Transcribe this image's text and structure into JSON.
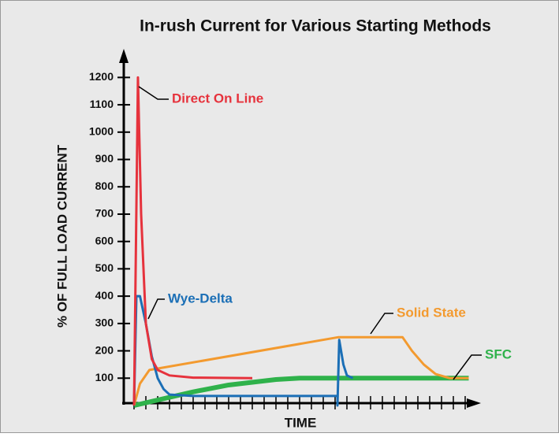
{
  "chart_data": {
    "type": "line",
    "title": "In-rush Current for Various Starting Methods",
    "ylabel": "% OF FULL LOAD CURRENT",
    "xlabel": "TIME",
    "xlim": [
      -1,
      29
    ],
    "xticks": [
      0,
      1,
      2,
      3,
      4,
      5,
      6,
      7,
      8,
      9,
      10,
      11,
      12,
      13,
      14,
      15,
      16,
      17,
      18,
      19,
      20,
      21,
      22,
      23,
      24,
      25,
      26,
      27,
      28
    ],
    "ylim": [
      0,
      1250
    ],
    "yticks": [
      100,
      200,
      300,
      400,
      500,
      600,
      700,
      800,
      900,
      1000,
      1100,
      1200
    ],
    "series": [
      {
        "name": "Direct On Line",
        "color": "#e6323c",
        "x": [
          0,
          0.33,
          0.6,
          1,
          1.5,
          2,
          3,
          5,
          10
        ],
        "values": [
          0,
          1200,
          700,
          300,
          170,
          130,
          110,
          102,
          100
        ]
      },
      {
        "name": "Wye-Delta",
        "color": "#1b6fb6",
        "x": [
          0,
          0.2,
          0.5,
          1,
          1.5,
          2,
          2.5,
          3,
          5,
          17.2,
          17.2,
          17.35,
          17.7,
          18,
          18.5
        ],
        "values": [
          0,
          400,
          400,
          300,
          180,
          100,
          60,
          40,
          35,
          35,
          0,
          240,
          150,
          110,
          100
        ]
      },
      {
        "name": "Solid State",
        "color": "#f39a2f",
        "x": [
          0,
          0.5,
          1.3,
          17.3,
          22.7,
          23.5,
          24.5,
          25.5,
          26.7,
          28.3
        ],
        "values": [
          0,
          80,
          130,
          250,
          250,
          200,
          150,
          115,
          100,
          100
        ]
      },
      {
        "name": "SFC",
        "color": "#2fb24b",
        "x": [
          0,
          2,
          5,
          8,
          12,
          14,
          28.3
        ],
        "values": [
          0,
          20,
          50,
          75,
          95,
          100,
          100
        ]
      }
    ]
  }
}
